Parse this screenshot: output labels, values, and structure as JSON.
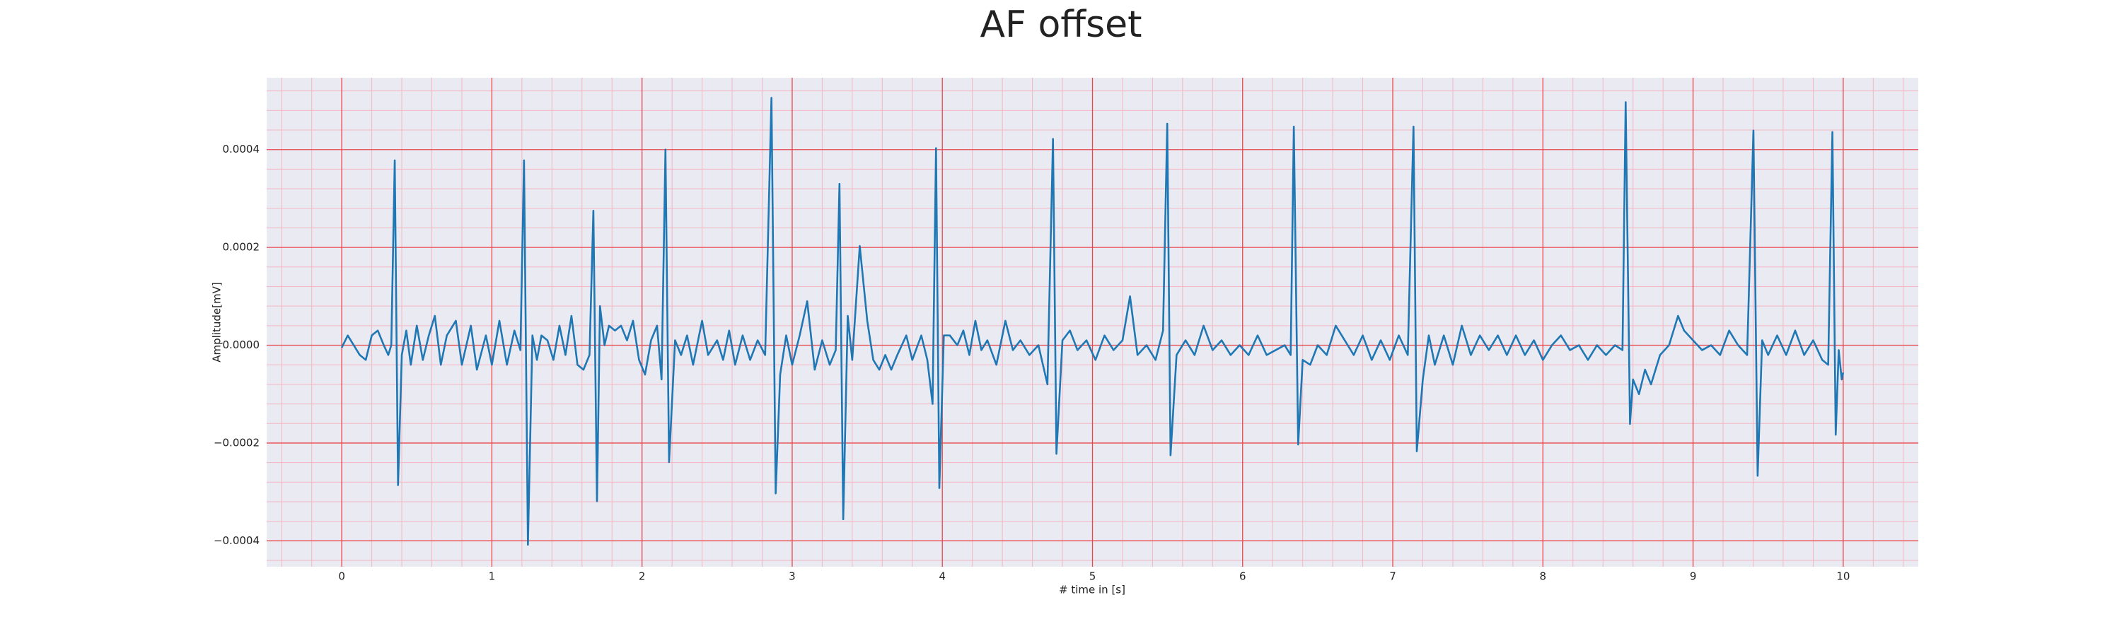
{
  "chart_data": {
    "type": "line",
    "title": "AF offset",
    "x_label": "# time in [s]",
    "y_label": "Amplitude[mV]",
    "color": "#1f77b4",
    "grid": true,
    "minor_grid": true,
    "xlim": [
      -0.5,
      10.5
    ],
    "xticks": [
      0,
      1,
      2,
      3,
      4,
      5,
      6,
      7,
      8,
      9,
      10
    ],
    "ylim": [
      -0.000453,
      0.000547
    ],
    "yticks": [
      {
        "value": -0.0004,
        "label": "−0.0004"
      },
      {
        "value": -0.0002,
        "label": "−0.0002"
      },
      {
        "value": 0,
        "label": "0.0000"
      },
      0.0002,
      0.0004
    ],
    "x": [
      0.0,
      0.04,
      0.08,
      0.12,
      0.16,
      0.2,
      0.24,
      0.28,
      0.31,
      0.33,
      0.353,
      0.375,
      0.4,
      0.43,
      0.46,
      0.5,
      0.54,
      0.58,
      0.62,
      0.66,
      0.7,
      0.76,
      0.8,
      0.86,
      0.9,
      0.96,
      1.0,
      1.05,
      1.1,
      1.15,
      1.19,
      1.214,
      1.24,
      1.27,
      1.3,
      1.33,
      1.37,
      1.41,
      1.45,
      1.49,
      1.53,
      1.57,
      1.61,
      1.65,
      1.676,
      1.7,
      1.72,
      1.75,
      1.78,
      1.82,
      1.86,
      1.9,
      1.94,
      1.98,
      2.02,
      2.06,
      2.1,
      2.13,
      2.156,
      2.18,
      2.22,
      2.26,
      2.3,
      2.34,
      2.4,
      2.44,
      2.5,
      2.54,
      2.58,
      2.62,
      2.67,
      2.72,
      2.77,
      2.82,
      2.862,
      2.89,
      2.92,
      2.96,
      3.0,
      3.05,
      3.1,
      3.15,
      3.2,
      3.25,
      3.29,
      3.315,
      3.34,
      3.37,
      3.4,
      3.45,
      3.5,
      3.54,
      3.58,
      3.62,
      3.66,
      3.7,
      3.76,
      3.8,
      3.86,
      3.9,
      3.935,
      3.958,
      3.98,
      4.01,
      4.05,
      4.1,
      4.14,
      4.18,
      4.22,
      4.26,
      4.3,
      4.36,
      4.42,
      4.47,
      4.52,
      4.58,
      4.64,
      4.7,
      4.737,
      4.76,
      4.8,
      4.85,
      4.9,
      4.96,
      5.02,
      5.08,
      5.14,
      5.2,
      5.25,
      5.3,
      5.36,
      5.42,
      5.47,
      5.498,
      5.52,
      5.56,
      5.62,
      5.68,
      5.74,
      5.8,
      5.86,
      5.92,
      5.98,
      6.04,
      6.1,
      6.16,
      6.22,
      6.28,
      6.32,
      6.341,
      6.37,
      6.4,
      6.45,
      6.5,
      6.56,
      6.62,
      6.68,
      6.74,
      6.8,
      6.86,
      6.92,
      6.98,
      7.04,
      7.1,
      7.138,
      7.16,
      7.2,
      7.24,
      7.28,
      7.34,
      7.4,
      7.46,
      7.52,
      7.58,
      7.64,
      7.7,
      7.76,
      7.82,
      7.88,
      7.94,
      8.0,
      8.06,
      8.12,
      8.18,
      8.24,
      8.3,
      8.36,
      8.42,
      8.48,
      8.53,
      8.551,
      8.58,
      8.6,
      8.64,
      8.68,
      8.72,
      8.78,
      8.84,
      8.9,
      8.94,
      9.0,
      9.06,
      9.12,
      9.18,
      9.24,
      9.3,
      9.36,
      9.402,
      9.43,
      9.46,
      9.5,
      9.56,
      9.62,
      9.68,
      9.74,
      9.8,
      9.86,
      9.9,
      9.928,
      9.95,
      9.97,
      9.99,
      10.0
    ],
    "values": [
      -5e-06,
      2e-05,
      0.0,
      -2e-05,
      -3e-05,
      2e-05,
      3e-05,
      0.0,
      -2e-05,
      0.0,
      0.000378,
      -0.000286,
      -2e-05,
      3e-05,
      -4e-05,
      4e-05,
      -3e-05,
      2e-05,
      6e-05,
      -4e-05,
      2e-05,
      5e-05,
      -4e-05,
      4e-05,
      -5e-05,
      2e-05,
      -4e-05,
      5e-05,
      -4e-05,
      3e-05,
      -1e-05,
      0.000378,
      -0.000408,
      2e-05,
      -3e-05,
      2e-05,
      1e-05,
      -3e-05,
      4e-05,
      -2e-05,
      6e-05,
      -4e-05,
      -5e-05,
      -2e-05,
      0.000275,
      -0.000319,
      8e-05,
      0.0,
      4e-05,
      3e-05,
      4e-05,
      1e-05,
      5e-05,
      -3e-05,
      -6e-05,
      1e-05,
      4e-05,
      -7e-05,
      0.0004,
      -0.000239,
      1e-05,
      -2e-05,
      2e-05,
      -4e-05,
      5e-05,
      -2e-05,
      1e-05,
      -3e-05,
      3e-05,
      -4e-05,
      2e-05,
      -3e-05,
      1e-05,
      -2e-05,
      0.000506,
      -0.000303,
      -6e-05,
      2e-05,
      -4e-05,
      2e-05,
      9e-05,
      -5e-05,
      1e-05,
      -4e-05,
      -1e-05,
      0.00033,
      -0.000356,
      6e-05,
      -3e-05,
      0.000203,
      5e-05,
      -3e-05,
      -5e-05,
      -2e-05,
      -5e-05,
      -2e-05,
      2e-05,
      -3e-05,
      2e-05,
      -3e-05,
      -0.00012,
      0.000403,
      -0.000292,
      2e-05,
      2e-05,
      0.0,
      3e-05,
      -2e-05,
      5e-05,
      -1e-05,
      1e-05,
      -4e-05,
      5e-05,
      -1e-05,
      1e-05,
      -2e-05,
      0.0,
      -8e-05,
      0.000422,
      -0.000222,
      1e-05,
      3e-05,
      -1e-05,
      1e-05,
      -3e-05,
      2e-05,
      -1e-05,
      1e-05,
      0.0001,
      -2e-05,
      0.0,
      -3e-05,
      3e-05,
      0.000453,
      -0.000225,
      -2e-05,
      1e-05,
      -2e-05,
      4e-05,
      -1e-05,
      1e-05,
      -2e-05,
      0.0,
      -2e-05,
      2e-05,
      -2e-05,
      -1e-05,
      0.0,
      -2e-05,
      0.000447,
      -0.000203,
      -3e-05,
      -4e-05,
      0.0,
      -2e-05,
      4e-05,
      1e-05,
      -2e-05,
      2e-05,
      -3e-05,
      1e-05,
      -3e-05,
      2e-05,
      -2e-05,
      0.000447,
      -0.000217,
      -7e-05,
      2e-05,
      -4e-05,
      2e-05,
      -4e-05,
      4e-05,
      -2e-05,
      2e-05,
      -1e-05,
      2e-05,
      -2e-05,
      2e-05,
      -2e-05,
      1e-05,
      -3e-05,
      0.0,
      2e-05,
      -1e-05,
      0.0,
      -3e-05,
      0.0,
      -2e-05,
      0.0,
      -1e-05,
      0.000497,
      -0.000161,
      -7e-05,
      -0.0001,
      -5e-05,
      -8e-05,
      -2e-05,
      0.0,
      6e-05,
      3e-05,
      1e-05,
      -1e-05,
      0.0,
      -2e-05,
      3e-05,
      0.0,
      -2e-05,
      0.000439,
      -0.000267,
      1e-05,
      -2e-05,
      2e-05,
      -2e-05,
      3e-05,
      -2e-05,
      1e-05,
      -3e-05,
      -4e-05,
      0.000436,
      -0.000183,
      -1e-05,
      -7e-05,
      -5.6e-05
    ]
  }
}
